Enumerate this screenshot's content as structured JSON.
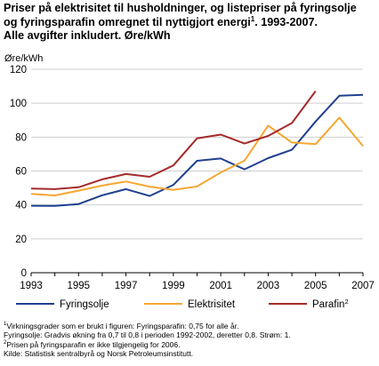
{
  "title": {
    "line1": "Priser på elektrisitet til husholdninger, og listepriser på fyringsolje",
    "line2_before": "og fyringsparafin omregnet til nyttigjort energi",
    "line2_sup": "1",
    "line2_after": ". 1993-2007.",
    "line3": "Alle avgifter inkludert. Øre/kWh"
  },
  "footnotes": {
    "fn1_sup": "1",
    "fn1": "Virkningsgrader som er brukt i figuren: Fyringsparafin: 0,75 for alle år.",
    "fn1_cont": "Fyringsolje: Gradvis økning fra 0,7 til 0,8 i perioden 1992-2002, deretter 0,8. Strøm: 1.",
    "fn2_sup": "2",
    "fn2": "Prisen på fyringsparafin er ikke tilgjengelig for 2006.",
    "source": "Kilde: Statistisk sentralbyrå og Norsk Petroleumsinstitutt."
  },
  "colors": {
    "fyringsolje": "#1f3f8f",
    "elektrisitet": "#f5a733",
    "parafin": "#a52a2a",
    "grid": "#cfcfcf",
    "axis": "#000000"
  },
  "chart_data": {
    "type": "line",
    "ylabel": "Øre/kWh",
    "xlabel": "",
    "ylim": [
      0,
      120
    ],
    "yticks": [
      0,
      20,
      40,
      60,
      80,
      100,
      120
    ],
    "xlim": [
      1993,
      2007
    ],
    "xticks": [
      1993,
      1995,
      1997,
      1999,
      2001,
      2003,
      2005,
      2007
    ],
    "grid": true,
    "legend_position": "bottom",
    "x": [
      1993,
      1994,
      1995,
      1996,
      1997,
      1998,
      1999,
      2000,
      2001,
      2002,
      2003,
      2004,
      2005,
      2006,
      2007
    ],
    "series": [
      {
        "name": "Fyringsolje",
        "color_key": "fyringsolje",
        "values": [
          39.5,
          39.4,
          40.5,
          45.7,
          49.3,
          45.3,
          51.8,
          66.0,
          67.4,
          61.0,
          67.6,
          72.5,
          89.2,
          104.4,
          104.9
        ]
      },
      {
        "name": "Elektrisitet",
        "color_key": "elektrisitet",
        "values": [
          46.5,
          45.6,
          48.4,
          51.4,
          53.8,
          50.8,
          48.9,
          50.9,
          59.1,
          66.1,
          86.8,
          76.8,
          75.8,
          91.5,
          74.7
        ]
      },
      {
        "name": "Parafin",
        "name_sup": "2",
        "color_key": "parafin",
        "values": [
          49.7,
          49.3,
          50.4,
          55.1,
          58.2,
          56.6,
          63.3,
          79.3,
          81.5,
          76.2,
          80.7,
          88.3,
          107.1,
          null,
          null
        ]
      }
    ]
  }
}
